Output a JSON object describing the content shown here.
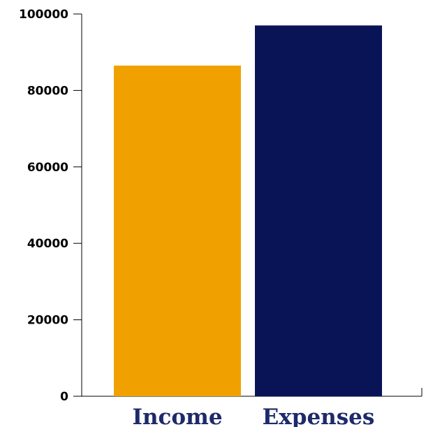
{
  "chart_data": {
    "type": "bar",
    "title": "",
    "xlabel": "",
    "ylabel": "",
    "categories": [
      "Income",
      "Expenses"
    ],
    "values": [
      86500,
      97000
    ],
    "ylim": [
      0,
      100000
    ],
    "yticks": [
      "0",
      "20000",
      "40000",
      "60000",
      "80000",
      "100000"
    ],
    "grid": false,
    "legend": "none",
    "colors": {
      "bars": [
        "#f0a100",
        "#091457"
      ],
      "category_labels": "#1d2a6b"
    }
  }
}
